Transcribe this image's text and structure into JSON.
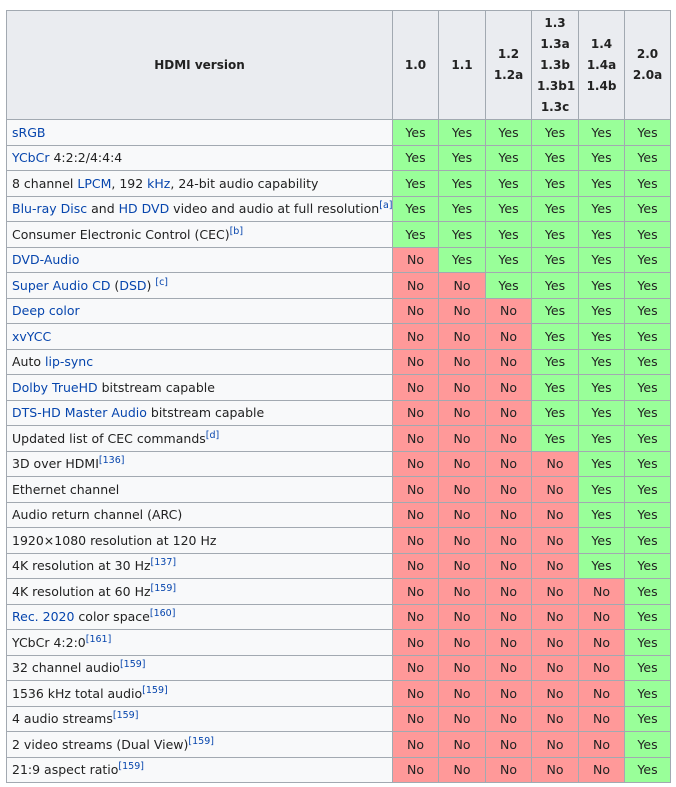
{
  "header": {
    "label": "HDMI version",
    "versions": [
      [
        "1.0"
      ],
      [
        "1.1"
      ],
      [
        "1.2",
        "1.2a"
      ],
      [
        "1.3",
        "1.3a",
        "1.3b",
        "1.3b1",
        "1.3c"
      ],
      [
        "1.4",
        "1.4a",
        "1.4b"
      ],
      [
        "2.0",
        "2.0a"
      ]
    ]
  },
  "cell_colors": {
    "Yes": "#99ff99",
    "No": "#ff9999"
  },
  "rows": [
    {
      "label": [
        {
          "t": "sRGB",
          "k": "link"
        }
      ],
      "cells": [
        "Yes",
        "Yes",
        "Yes",
        "Yes",
        "Yes",
        "Yes"
      ]
    },
    {
      "label": [
        {
          "t": "YCbCr",
          "k": "link"
        },
        {
          "t": " 4:2:2/4:4:4",
          "k": "text"
        }
      ],
      "cells": [
        "Yes",
        "Yes",
        "Yes",
        "Yes",
        "Yes",
        "Yes"
      ]
    },
    {
      "label": [
        {
          "t": "8 channel ",
          "k": "text"
        },
        {
          "t": "LPCM",
          "k": "link"
        },
        {
          "t": ", 192 ",
          "k": "text"
        },
        {
          "t": "kHz",
          "k": "link"
        },
        {
          "t": ", 24-bit audio capability",
          "k": "text"
        }
      ],
      "cells": [
        "Yes",
        "Yes",
        "Yes",
        "Yes",
        "Yes",
        "Yes"
      ]
    },
    {
      "label": [
        {
          "t": "Blu-ray Disc",
          "k": "link"
        },
        {
          "t": " and ",
          "k": "text"
        },
        {
          "t": "HD DVD",
          "k": "link"
        },
        {
          "t": " video and audio at full resolution",
          "k": "text"
        },
        {
          "t": "[a]",
          "k": "sup"
        }
      ],
      "cells": [
        "Yes",
        "Yes",
        "Yes",
        "Yes",
        "Yes",
        "Yes"
      ]
    },
    {
      "label": [
        {
          "t": "Consumer Electronic Control (CEC)",
          "k": "text"
        },
        {
          "t": "[b]",
          "k": "sup"
        }
      ],
      "cells": [
        "Yes",
        "Yes",
        "Yes",
        "Yes",
        "Yes",
        "Yes"
      ]
    },
    {
      "label": [
        {
          "t": "DVD-Audio",
          "k": "link"
        }
      ],
      "cells": [
        "No",
        "Yes",
        "Yes",
        "Yes",
        "Yes",
        "Yes"
      ]
    },
    {
      "label": [
        {
          "t": "Super Audio CD",
          "k": "link"
        },
        {
          "t": " (",
          "k": "text"
        },
        {
          "t": "DSD",
          "k": "link"
        },
        {
          "t": ") ",
          "k": "text"
        },
        {
          "t": "[c]",
          "k": "sup"
        }
      ],
      "cells": [
        "No",
        "No",
        "Yes",
        "Yes",
        "Yes",
        "Yes"
      ]
    },
    {
      "label": [
        {
          "t": "Deep color",
          "k": "link"
        }
      ],
      "cells": [
        "No",
        "No",
        "No",
        "Yes",
        "Yes",
        "Yes"
      ]
    },
    {
      "label": [
        {
          "t": "xvYCC",
          "k": "link"
        }
      ],
      "cells": [
        "No",
        "No",
        "No",
        "Yes",
        "Yes",
        "Yes"
      ]
    },
    {
      "label": [
        {
          "t": "Auto ",
          "k": "text"
        },
        {
          "t": "lip-sync",
          "k": "link"
        }
      ],
      "cells": [
        "No",
        "No",
        "No",
        "Yes",
        "Yes",
        "Yes"
      ]
    },
    {
      "label": [
        {
          "t": "Dolby TrueHD",
          "k": "link"
        },
        {
          "t": " bitstream capable",
          "k": "text"
        }
      ],
      "cells": [
        "No",
        "No",
        "No",
        "Yes",
        "Yes",
        "Yes"
      ]
    },
    {
      "label": [
        {
          "t": "DTS-HD Master Audio",
          "k": "link"
        },
        {
          "t": " bitstream capable",
          "k": "text"
        }
      ],
      "cells": [
        "No",
        "No",
        "No",
        "Yes",
        "Yes",
        "Yes"
      ]
    },
    {
      "label": [
        {
          "t": "Updated list of CEC commands",
          "k": "text"
        },
        {
          "t": "[d]",
          "k": "sup"
        }
      ],
      "cells": [
        "No",
        "No",
        "No",
        "Yes",
        "Yes",
        "Yes"
      ]
    },
    {
      "label": [
        {
          "t": "3D over HDMI",
          "k": "text"
        },
        {
          "t": "[136]",
          "k": "sup"
        }
      ],
      "cells": [
        "No",
        "No",
        "No",
        "No",
        "Yes",
        "Yes"
      ]
    },
    {
      "label": [
        {
          "t": "Ethernet channel",
          "k": "text"
        }
      ],
      "cells": [
        "No",
        "No",
        "No",
        "No",
        "Yes",
        "Yes"
      ]
    },
    {
      "label": [
        {
          "t": "Audio return channel (ARC)",
          "k": "text"
        }
      ],
      "cells": [
        "No",
        "No",
        "No",
        "No",
        "Yes",
        "Yes"
      ]
    },
    {
      "label": [
        {
          "t": "1920×1080 resolution at 120 Hz",
          "k": "text"
        }
      ],
      "cells": [
        "No",
        "No",
        "No",
        "No",
        "Yes",
        "Yes"
      ]
    },
    {
      "label": [
        {
          "t": "4K resolution at 30 Hz",
          "k": "text"
        },
        {
          "t": "[137]",
          "k": "sup"
        }
      ],
      "cells": [
        "No",
        "No",
        "No",
        "No",
        "Yes",
        "Yes"
      ]
    },
    {
      "label": [
        {
          "t": "4K resolution at 60 Hz",
          "k": "text"
        },
        {
          "t": "[159]",
          "k": "sup"
        }
      ],
      "cells": [
        "No",
        "No",
        "No",
        "No",
        "No",
        "Yes"
      ]
    },
    {
      "label": [
        {
          "t": "Rec. 2020",
          "k": "link"
        },
        {
          "t": " color space",
          "k": "text"
        },
        {
          "t": "[160]",
          "k": "sup"
        }
      ],
      "cells": [
        "No",
        "No",
        "No",
        "No",
        "No",
        "Yes"
      ]
    },
    {
      "label": [
        {
          "t": "YCbCr 4:2:0",
          "k": "text"
        },
        {
          "t": "[161]",
          "k": "sup"
        }
      ],
      "cells": [
        "No",
        "No",
        "No",
        "No",
        "No",
        "Yes"
      ]
    },
    {
      "label": [
        {
          "t": "32 channel audio",
          "k": "text"
        },
        {
          "t": "[159]",
          "k": "sup"
        }
      ],
      "cells": [
        "No",
        "No",
        "No",
        "No",
        "No",
        "Yes"
      ]
    },
    {
      "label": [
        {
          "t": "1536 kHz total audio",
          "k": "text"
        },
        {
          "t": "[159]",
          "k": "sup"
        }
      ],
      "cells": [
        "No",
        "No",
        "No",
        "No",
        "No",
        "Yes"
      ]
    },
    {
      "label": [
        {
          "t": "4 audio streams",
          "k": "text"
        },
        {
          "t": "[159]",
          "k": "sup"
        }
      ],
      "cells": [
        "No",
        "No",
        "No",
        "No",
        "No",
        "Yes"
      ]
    },
    {
      "label": [
        {
          "t": "2 video streams (Dual View)",
          "k": "text"
        },
        {
          "t": "[159]",
          "k": "sup"
        }
      ],
      "cells": [
        "No",
        "No",
        "No",
        "No",
        "No",
        "Yes"
      ]
    },
    {
      "label": [
        {
          "t": "21:9 aspect ratio",
          "k": "text"
        },
        {
          "t": "[159]",
          "k": "sup"
        }
      ],
      "cells": [
        "No",
        "No",
        "No",
        "No",
        "No",
        "Yes"
      ]
    }
  ]
}
